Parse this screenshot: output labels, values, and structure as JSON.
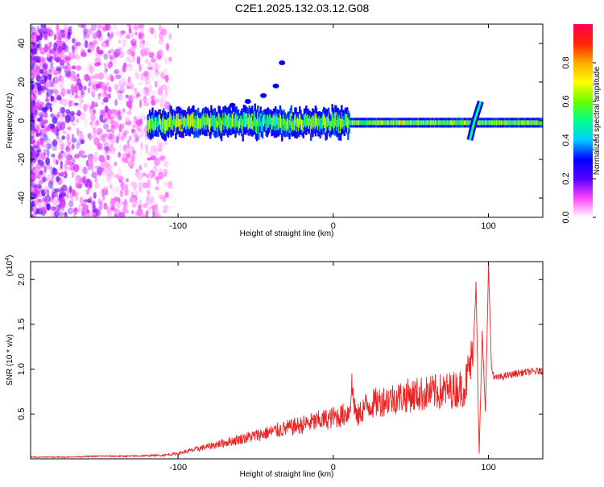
{
  "title": "C2E1.2025.132.03.12.G08",
  "chart_data": [
    {
      "type": "heatmap",
      "xlabel": "Height of straight line (km)",
      "ylabel": "Frequency (Hz)",
      "xlim": [
        -195,
        135
      ],
      "ylim": [
        -50,
        50
      ],
      "x_ticks": [
        -100,
        0,
        100
      ],
      "x_tick_labels": [
        "-100",
        "0",
        "100"
      ],
      "y_ticks": [
        -40,
        -20,
        0,
        20,
        40
      ],
      "y_tick_labels": [
        "-40",
        "-20",
        "0",
        "20",
        "40"
      ],
      "colorbar": {
        "label": "Normalized spectral amplitude",
        "range": [
          0,
          1
        ],
        "ticks": [
          0,
          0.2,
          0.4,
          0.6,
          0.8
        ],
        "tick_labels": [
          "0.0",
          "0.2",
          "0.4",
          "0.6",
          "0.8"
        ],
        "colors": [
          "#ffffff",
          "#ff44ff",
          "#5500ff",
          "#0000ff",
          "#00ccff",
          "#00ff88",
          "#66ff00",
          "#ffff00",
          "#ffaa00",
          "#ff2200",
          "#ff0055"
        ]
      },
      "features": [
        {
          "name": "noise-region",
          "x_range": [
            -195,
            -105
          ],
          "y_range": [
            -50,
            50
          ],
          "amplitude": 0.15
        },
        {
          "name": "carrier-line",
          "x_range": [
            -120,
            135
          ],
          "y_center": -1,
          "amplitude": 0.6
        },
        {
          "name": "drift-branch",
          "x": [
            -65,
            -55,
            -45,
            -37,
            -33
          ],
          "y": [
            8,
            10,
            13,
            18,
            30
          ],
          "amplitude": 0.3
        },
        {
          "name": "spike",
          "x": [
            88,
            91,
            95
          ],
          "y": [
            -10,
            0,
            10
          ],
          "amplitude": 0.5
        }
      ]
    },
    {
      "type": "line",
      "xlabel": "Height of straight line (km)",
      "ylabel": "SNR (10 * v/v)",
      "ylabel_exponent": "(x10^4)",
      "xlim": [
        -195,
        135
      ],
      "ylim": [
        0,
        2.2
      ],
      "x_ticks": [
        -100,
        0,
        100
      ],
      "x_tick_labels": [
        "-100",
        "0",
        "100"
      ],
      "y_ticks": [
        0.5,
        1.0,
        1.5,
        2.0
      ],
      "y_tick_labels": [
        "0.5",
        "1.0",
        "1.5",
        "2.0"
      ],
      "series": [
        {
          "color": "#ee2222",
          "x": [
            -195,
            -170,
            -150,
            -130,
            -110,
            -100,
            -90,
            -80,
            -70,
            -60,
            -50,
            -40,
            -30,
            -20,
            -10,
            -5,
            0,
            5,
            10,
            12,
            15,
            20,
            30,
            40,
            50,
            60,
            70,
            80,
            85,
            88,
            90,
            92,
            94,
            96,
            98,
            100,
            102,
            104,
            110,
            120,
            135
          ],
          "y": [
            0.02,
            0.02,
            0.03,
            0.03,
            0.04,
            0.06,
            0.1,
            0.14,
            0.18,
            0.22,
            0.26,
            0.3,
            0.34,
            0.38,
            0.42,
            0.44,
            0.46,
            0.48,
            0.52,
            0.8,
            0.45,
            0.58,
            0.64,
            0.68,
            0.71,
            0.73,
            0.75,
            0.78,
            0.8,
            1.05,
            1.1,
            1.98,
            0.05,
            1.4,
            0.5,
            2.15,
            1.0,
            0.9,
            0.92,
            0.96,
            0.98
          ]
        }
      ]
    }
  ]
}
